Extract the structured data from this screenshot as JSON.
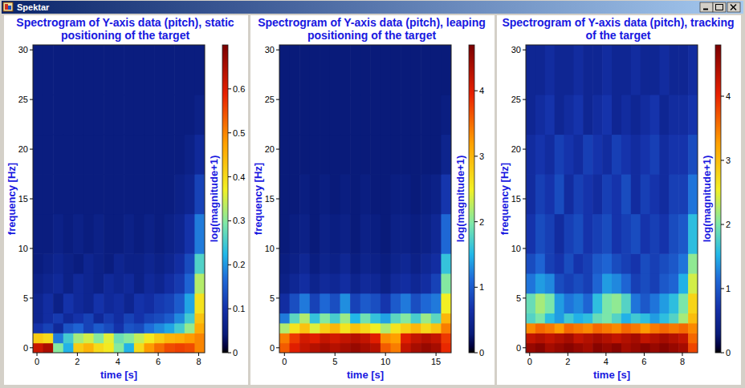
{
  "window": {
    "title": "Spektar"
  },
  "chart_data": [
    {
      "type": "heatmap",
      "title": "Spectrogram of Y-axis data (pitch), static positioning of the target",
      "x_label": "time [s]",
      "y_label": "frequency [Hz]",
      "xlim": [
        -0.2,
        8.3
      ],
      "ylim": [
        -0.5,
        30.5
      ],
      "xticks": [
        0,
        2,
        4,
        6,
        8
      ],
      "yticks": [
        0,
        5,
        10,
        15,
        20,
        25,
        30
      ],
      "x_edges": [
        -0.2,
        0.3,
        0.8,
        1.3,
        1.8,
        2.3,
        2.8,
        3.3,
        3.8,
        4.3,
        4.8,
        5.3,
        5.8,
        6.3,
        6.8,
        7.3,
        7.8,
        8.3
      ],
      "y_edges": [
        -0.5,
        0.5,
        1.5,
        2.5,
        3.5,
        5.5,
        7.5,
        9.5,
        13.5,
        17.5,
        21.5,
        25.5,
        30.5
      ],
      "cells": [
        [
          0.62,
          0.65,
          0.3,
          0.22,
          0.42,
          0.45,
          0.4,
          0.38,
          0.3,
          0.22,
          0.4,
          0.48,
          0.52,
          0.55,
          0.56,
          0.55,
          0.5
        ],
        [
          0.42,
          0.4,
          0.18,
          0.25,
          0.32,
          0.35,
          0.3,
          0.36,
          0.28,
          0.3,
          0.34,
          0.38,
          0.42,
          0.45,
          0.46,
          0.48,
          0.5
        ],
        [
          0.1,
          0.12,
          0.08,
          0.14,
          0.16,
          0.12,
          0.15,
          0.13,
          0.1,
          0.14,
          0.13,
          0.17,
          0.19,
          0.21,
          0.25,
          0.31,
          0.46
        ],
        [
          0.07,
          0.09,
          0.11,
          0.08,
          0.1,
          0.12,
          0.08,
          0.11,
          0.09,
          0.12,
          0.1,
          0.12,
          0.13,
          0.15,
          0.19,
          0.25,
          0.43
        ],
        [
          0.07,
          0.09,
          0.06,
          0.1,
          0.08,
          0.07,
          0.1,
          0.08,
          0.09,
          0.07,
          0.1,
          0.09,
          0.11,
          0.12,
          0.15,
          0.21,
          0.39
        ],
        [
          0.06,
          0.07,
          0.08,
          0.06,
          0.08,
          0.07,
          0.06,
          0.08,
          0.07,
          0.08,
          0.06,
          0.08,
          0.07,
          0.09,
          0.11,
          0.16,
          0.33
        ],
        [
          0.05,
          0.06,
          0.07,
          0.06,
          0.05,
          0.07,
          0.06,
          0.05,
          0.07,
          0.06,
          0.06,
          0.07,
          0.06,
          0.07,
          0.09,
          0.13,
          0.26
        ],
        [
          0.05,
          0.05,
          0.06,
          0.05,
          0.06,
          0.05,
          0.06,
          0.05,
          0.05,
          0.06,
          0.05,
          0.06,
          0.05,
          0.06,
          0.07,
          0.1,
          0.18
        ],
        [
          0.05,
          0.05,
          0.05,
          0.05,
          0.05,
          0.05,
          0.05,
          0.05,
          0.05,
          0.05,
          0.05,
          0.05,
          0.05,
          0.05,
          0.06,
          0.07,
          0.12
        ],
        [
          0.05,
          0.05,
          0.05,
          0.05,
          0.05,
          0.05,
          0.05,
          0.05,
          0.05,
          0.05,
          0.05,
          0.05,
          0.05,
          0.05,
          0.05,
          0.06,
          0.08
        ],
        [
          0.05,
          0.05,
          0.05,
          0.05,
          0.05,
          0.05,
          0.05,
          0.05,
          0.05,
          0.05,
          0.05,
          0.05,
          0.05,
          0.05,
          0.05,
          0.05,
          0.06
        ],
        [
          0.05,
          0.05,
          0.05,
          0.05,
          0.05,
          0.05,
          0.05,
          0.05,
          0.05,
          0.05,
          0.05,
          0.05,
          0.05,
          0.05,
          0.05,
          0.05,
          0.05
        ]
      ],
      "colorbar": {
        "label": "log(magnitude+1)",
        "range": [
          0,
          0.7
        ],
        "ticks": [
          0,
          0.1,
          0.2,
          0.3,
          0.4,
          0.5,
          0.6
        ]
      }
    },
    {
      "type": "heatmap",
      "title": "Spectrogram of Y-axis data (pitch), leaping positioning of the target",
      "x_label": "time [s]",
      "y_label": "frequency [Hz]",
      "xlim": [
        -0.5,
        16.5
      ],
      "ylim": [
        -0.5,
        30.5
      ],
      "xticks": [
        0,
        5,
        10,
        15
      ],
      "yticks": [
        0,
        5,
        10,
        15,
        20,
        25,
        30
      ],
      "x_edges": [
        -0.5,
        0.5,
        1.5,
        2.5,
        3.5,
        4.5,
        5.5,
        6.5,
        7.5,
        8.5,
        9.5,
        10.5,
        11.5,
        12.5,
        13.5,
        14.5,
        15.5,
        16.5
      ],
      "y_edges": [
        -0.5,
        0.5,
        1.5,
        2.5,
        3.5,
        5.5,
        7.5,
        9.5,
        13.5,
        17.5,
        21.5,
        25.5,
        30.5
      ],
      "cells": [
        [
          3.6,
          4.0,
          4.2,
          4.3,
          4.4,
          4.3,
          4.4,
          4.5,
          4.4,
          4.3,
          3.6,
          3.4,
          4.2,
          4.4,
          4.5,
          4.4,
          3.9
        ],
        [
          3.4,
          3.8,
          4.1,
          4.0,
          4.2,
          4.1,
          4.2,
          4.3,
          4.2,
          4.0,
          3.3,
          3.2,
          4.0,
          4.2,
          4.3,
          4.2,
          3.8
        ],
        [
          2.2,
          2.6,
          2.9,
          2.4,
          2.8,
          3.0,
          2.6,
          2.9,
          2.7,
          2.5,
          2.2,
          2.6,
          2.8,
          3.0,
          2.7,
          2.9,
          3.4
        ],
        [
          1.2,
          1.8,
          2.2,
          1.6,
          2.0,
          1.7,
          2.1,
          1.5,
          1.9,
          1.6,
          1.4,
          1.8,
          2.0,
          1.7,
          2.1,
          1.8,
          3.0
        ],
        [
          0.6,
          0.9,
          1.2,
          0.8,
          1.1,
          0.9,
          1.3,
          0.8,
          1.0,
          0.9,
          0.7,
          1.0,
          1.2,
          0.9,
          1.1,
          1.2,
          2.5
        ],
        [
          0.4,
          0.5,
          0.6,
          0.45,
          0.55,
          0.5,
          0.6,
          0.45,
          0.55,
          0.5,
          0.4,
          0.55,
          0.6,
          0.5,
          0.6,
          0.8,
          2.0
        ],
        [
          0.35,
          0.4,
          0.5,
          0.35,
          0.45,
          0.4,
          0.5,
          0.35,
          0.45,
          0.4,
          0.35,
          0.45,
          0.5,
          0.4,
          0.5,
          0.6,
          1.6
        ],
        [
          0.3,
          0.35,
          0.4,
          0.3,
          0.4,
          0.35,
          0.4,
          0.3,
          0.4,
          0.35,
          0.3,
          0.4,
          0.4,
          0.35,
          0.4,
          0.5,
          1.1
        ],
        [
          0.3,
          0.3,
          0.35,
          0.3,
          0.35,
          0.3,
          0.35,
          0.3,
          0.35,
          0.3,
          0.3,
          0.35,
          0.35,
          0.3,
          0.35,
          0.4,
          0.7
        ],
        [
          0.3,
          0.3,
          0.3,
          0.3,
          0.3,
          0.3,
          0.3,
          0.3,
          0.3,
          0.3,
          0.3,
          0.3,
          0.3,
          0.3,
          0.3,
          0.3,
          0.45
        ],
        [
          0.3,
          0.3,
          0.3,
          0.3,
          0.3,
          0.3,
          0.3,
          0.3,
          0.3,
          0.3,
          0.3,
          0.3,
          0.3,
          0.3,
          0.3,
          0.3,
          0.35
        ],
        [
          0.3,
          0.3,
          0.3,
          0.3,
          0.3,
          0.3,
          0.3,
          0.3,
          0.3,
          0.3,
          0.3,
          0.3,
          0.3,
          0.3,
          0.3,
          0.3,
          0.3
        ]
      ],
      "colorbar": {
        "label": "log(magnitude+1)",
        "range": [
          0,
          4.7
        ],
        "ticks": [
          0,
          1,
          2,
          3,
          4
        ]
      }
    },
    {
      "type": "heatmap",
      "title": "Spectrogram of Y-axis data (pitch), tracking of the target",
      "x_label": "time [s]",
      "y_label": "frequency [Hz]",
      "xlim": [
        -0.2,
        8.8
      ],
      "ylim": [
        -0.5,
        30.5
      ],
      "xticks": [
        0,
        2,
        4,
        6,
        8
      ],
      "yticks": [
        0,
        5,
        10,
        15,
        20,
        25,
        30
      ],
      "x_edges": [
        -0.2,
        0.3,
        0.8,
        1.3,
        1.8,
        2.3,
        2.8,
        3.3,
        3.8,
        4.3,
        4.8,
        5.3,
        5.8,
        6.3,
        6.8,
        7.3,
        7.8,
        8.3,
        8.8
      ],
      "y_edges": [
        -0.5,
        0.5,
        1.5,
        2.5,
        3.5,
        5.5,
        7.5,
        9.5,
        13.5,
        17.5,
        21.5,
        25.5,
        30.5
      ],
      "cells": [
        [
          4.6,
          4.7,
          4.5,
          4.6,
          4.7,
          4.6,
          4.5,
          4.7,
          4.6,
          4.7,
          4.5,
          4.6,
          4.7,
          4.6,
          4.7,
          4.6,
          4.5,
          3.8
        ],
        [
          4.3,
          4.4,
          4.3,
          4.4,
          4.5,
          4.3,
          4.4,
          4.5,
          4.4,
          4.3,
          4.4,
          4.5,
          4.3,
          4.4,
          4.5,
          4.4,
          4.3,
          3.6
        ],
        [
          3.4,
          3.6,
          3.5,
          3.3,
          3.6,
          3.5,
          3.4,
          3.6,
          3.5,
          3.4,
          3.6,
          3.5,
          3.3,
          3.5,
          3.6,
          3.5,
          3.6,
          3.4
        ],
        [
          1.8,
          2.0,
          1.6,
          1.4,
          1.7,
          1.5,
          1.6,
          1.9,
          2.0,
          1.8,
          1.5,
          1.7,
          1.6,
          1.4,
          1.6,
          1.8,
          2.2,
          3.0
        ],
        [
          1.9,
          2.2,
          2.0,
          1.4,
          1.2,
          1.3,
          1.1,
          1.6,
          2.0,
          2.1,
          1.8,
          1.2,
          1.0,
          1.2,
          1.4,
          1.6,
          2.0,
          2.8
        ],
        [
          1.2,
          1.4,
          1.3,
          0.9,
          0.8,
          0.9,
          0.8,
          1.1,
          1.4,
          1.3,
          1.1,
          0.8,
          0.9,
          0.8,
          1.0,
          1.1,
          1.5,
          2.4
        ],
        [
          0.9,
          1.1,
          0.8,
          0.7,
          0.9,
          0.7,
          0.8,
          1.0,
          1.1,
          0.9,
          0.8,
          0.7,
          0.9,
          0.8,
          0.9,
          1.0,
          1.2,
          2.1
        ],
        [
          0.7,
          0.9,
          0.8,
          0.6,
          0.8,
          0.9,
          0.7,
          0.8,
          0.9,
          0.7,
          0.8,
          0.9,
          0.7,
          0.8,
          0.7,
          0.9,
          1.0,
          1.6
        ],
        [
          0.6,
          0.8,
          0.7,
          0.9,
          0.6,
          0.8,
          0.7,
          0.6,
          0.8,
          0.7,
          0.9,
          0.6,
          0.8,
          0.7,
          0.6,
          0.8,
          0.8,
          1.2
        ],
        [
          0.6,
          0.7,
          0.6,
          0.8,
          0.7,
          0.6,
          0.8,
          0.7,
          0.6,
          0.8,
          0.7,
          0.6,
          0.7,
          0.8,
          0.6,
          0.7,
          0.7,
          0.9
        ],
        [
          0.5,
          0.6,
          0.7,
          0.5,
          0.6,
          0.7,
          0.5,
          0.6,
          0.7,
          0.5,
          0.6,
          0.5,
          0.6,
          0.7,
          0.5,
          0.6,
          0.6,
          0.7
        ],
        [
          0.5,
          0.5,
          0.6,
          0.5,
          0.5,
          0.6,
          0.5,
          0.5,
          0.6,
          0.5,
          0.5,
          0.6,
          0.5,
          0.5,
          0.6,
          0.5,
          0.5,
          0.6
        ]
      ],
      "colorbar": {
        "label": "log(magnitude+1)",
        "range": [
          0,
          4.8
        ],
        "ticks": [
          0,
          1,
          2,
          3,
          4
        ]
      }
    }
  ]
}
